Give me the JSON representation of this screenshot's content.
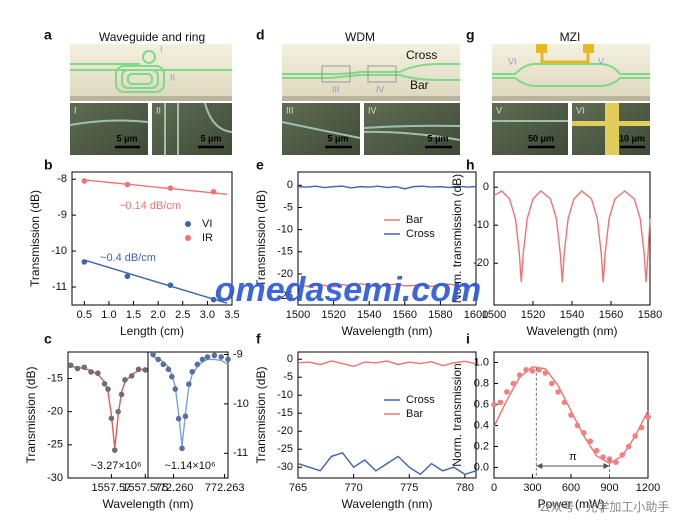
{
  "panels": {
    "letters": [
      "a",
      "b",
      "c",
      "d",
      "e",
      "f",
      "g",
      "h",
      "i"
    ]
  },
  "images": {
    "a": {
      "title": "Waveguide and ring",
      "labels": [
        "I",
        "II"
      ],
      "insets": [
        {
          "label": "I",
          "scale": "5 μm"
        },
        {
          "label": "II",
          "scale": "5 μm"
        }
      ]
    },
    "d": {
      "title": "WDM",
      "labels": [
        "Cross",
        "Bar",
        "III",
        "IV"
      ],
      "insets": [
        {
          "label": "III",
          "scale": "5 μm"
        },
        {
          "label": "IV",
          "scale": "5 μm"
        }
      ]
    },
    "g": {
      "title": "MZI",
      "labels": [
        "VI",
        "V"
      ],
      "insets": [
        {
          "label": "V",
          "scale": "50 μm"
        },
        {
          "label": "VI",
          "scale": "10 μm"
        }
      ]
    }
  },
  "watermark": {
    "site": "omedasemi.com",
    "wechat": "公众号 · 光学加工小助手"
  },
  "chart_data": [
    {
      "type": "scatter",
      "xlabel": "Length (cm)",
      "ylabel": "Transmission (dB)",
      "xlim": [
        0.25,
        3.5
      ],
      "ylim": [
        -11.5,
        -7.8
      ],
      "xticks": [
        0.5,
        {
          "value": 1,
          "label": "1.0"
        },
        1.5,
        {
          "value": 2,
          "label": "2.0"
        },
        2.5,
        {
          "value": 3,
          "label": "3.0"
        },
        3.5
      ],
      "yticks": [
        -8,
        -9,
        -10,
        -11
      ],
      "series": [
        {
          "name": "VI",
          "color": "#3f64b4",
          "style": "markers",
          "x": [
            0.5,
            1.375,
            2.25,
            3.125
          ],
          "values": [
            -10.3,
            -10.7,
            -10.95,
            -11.35
          ]
        },
        {
          "name": "IR",
          "color": "#f07272",
          "style": "markers",
          "x": [
            0.5,
            1.375,
            2.25,
            3.125
          ],
          "values": [
            -8.05,
            -8.15,
            -8.25,
            -8.35
          ]
        },
        {
          "color": "#3f64b4",
          "style": "line",
          "x": [
            0.5,
            3.4
          ],
          "values": [
            -10.25,
            -11.45
          ]
        },
        {
          "color": "#f07272",
          "style": "line",
          "x": [
            0.5,
            3.4
          ],
          "values": [
            -8.02,
            -8.42
          ]
        }
      ],
      "legend": "center right",
      "annotations": [
        {
          "text": "~0.14 dB/cm",
          "color": "#f07272"
        },
        {
          "text": "~0.4 dB/cm",
          "color": "#3f64b4"
        }
      ]
    },
    {
      "type": "line",
      "xlabel": "Wavelength (nm)",
      "ylabel": "Transmission (dB)",
      "xlim": [
        1500,
        1600
      ],
      "ylim": [
        -27,
        3
      ],
      "xticks": [
        1500,
        1520,
        1540,
        1560,
        1580,
        1600
      ],
      "yticks": [
        0,
        -5,
        -10,
        -15,
        -20,
        -25
      ],
      "x": [
        1500,
        1505,
        1510,
        1515,
        1520,
        1525,
        1530,
        1535,
        1540,
        1545,
        1550,
        1555,
        1560,
        1565,
        1570,
        1575,
        1580,
        1585,
        1590,
        1595,
        1600
      ],
      "series": [
        {
          "name": "Bar",
          "color": "#f07272",
          "style": "line",
          "values": [
            -22.5,
            -22.8,
            -22.3,
            -22.6,
            -22.9,
            -22.4,
            -22.7,
            -22.2,
            -22.6,
            -22.8,
            -22.5,
            -22.3,
            -22.7,
            -22.6,
            -22.4,
            -22.8,
            -22.5,
            -22.3,
            -22.6,
            -22.7,
            -22.4
          ]
        },
        {
          "name": "Cross",
          "color": "#3f64b4",
          "style": "line",
          "values": [
            -0.3,
            -0.4,
            -0.2,
            -0.5,
            -0.3,
            -0.2,
            -0.6,
            -0.3,
            -0.4,
            -0.2,
            -0.5,
            -0.3,
            -0.8,
            -0.3,
            -0.2,
            -0.4,
            -0.3,
            -0.5,
            -0.2,
            -0.4,
            -0.3
          ]
        }
      ],
      "legend": "center right"
    },
    {
      "type": "line",
      "xlabel": "Wavelength (nm)",
      "ylabel": "Norm. transmission (dB)",
      "xlim": [
        1500,
        1580
      ],
      "ylim": [
        -31,
        4
      ],
      "xticks": [
        1500,
        1520,
        1540,
        1560,
        1580
      ],
      "yticks": [
        0,
        -10,
        -20
      ],
      "x": [
        1500,
        1504,
        1508,
        1511,
        1513,
        1514,
        1515,
        1517,
        1520,
        1524,
        1529,
        1532,
        1534,
        1535,
        1536,
        1538,
        1541,
        1545,
        1550,
        1553,
        1555,
        1556,
        1557,
        1559,
        1562,
        1567,
        1572,
        1575,
        1577,
        1578,
        1579,
        1580
      ],
      "series": [
        {
          "color": "#f07272",
          "style": "line",
          "values": [
            -2.2,
            -1.0,
            -3.1,
            -8.3,
            -17.5,
            -25,
            -17.5,
            -8.3,
            -3.1,
            -1.0,
            -3.1,
            -8.3,
            -17.5,
            -25,
            -17.5,
            -8.3,
            -3.1,
            -1.0,
            -3.1,
            -8.3,
            -17.5,
            -25,
            -17.5,
            -8.3,
            -3.1,
            -1.0,
            -3.1,
            -8.3,
            -17.5,
            -25,
            -17.5,
            -8.3
          ]
        }
      ]
    },
    {
      "type": "scatter",
      "xlabel": "Wavelength (nm)",
      "ylabel": "Transmission (dB)",
      "xlim": [
        1557.5636,
        1557.5754
      ],
      "ylim": [
        -30,
        -11
      ],
      "xticks": [
        1557.57,
        1557.575
      ],
      "yticks": [
        -15,
        -20,
        -25,
        -30
      ],
      "x": [
        1557.564,
        1557.565,
        1557.566,
        1557.567,
        1557.568,
        1557.569,
        1557.5695,
        1557.57,
        1557.5705,
        1557.571,
        1557.5715,
        1557.572,
        1557.573,
        1557.574,
        1557.575
      ],
      "series": [
        {
          "color": "#e8585a",
          "style": "line",
          "values": [
            -13.2,
            -13.3,
            -13.5,
            -13.8,
            -14.4,
            -15.5,
            -17,
            -20.5,
            -25.5,
            -20.5,
            -17,
            -15.5,
            -14.4,
            -13.8,
            -13.5
          ]
        },
        {
          "color": "#6f6f6f",
          "style": "markers",
          "values": [
            -13.0,
            -13.5,
            -13.3,
            -14.0,
            -14.2,
            -15.8,
            -16.6,
            -21,
            -25.8,
            -20,
            -17.4,
            -15.2,
            -14.6,
            -13.6,
            -13.7
          ]
        }
      ],
      "annotations": [
        {
          "text": "~3.27×10⁶",
          "color": "#111"
        }
      ]
    },
    {
      "type": "scatter",
      "y_axis_side": "right",
      "xlim": [
        772.2585,
        772.2632
      ],
      "ylim": [
        -11.5,
        -8.95
      ],
      "xticks": [
        {
          "value": 772.26,
          "label": "772.260"
        },
        772.263
      ],
      "yticks": [
        -9,
        -10,
        -11
      ],
      "x": [
        772.2588,
        772.2591,
        772.2594,
        772.2597,
        772.2599,
        772.2601,
        772.2603,
        772.2605,
        772.2607,
        772.2609,
        772.2611,
        772.2614,
        772.2617,
        772.262,
        772.2624,
        772.2628,
        772.2632
      ],
      "series": [
        {
          "color": "#7aa2d6",
          "style": "line",
          "values": [
            -9.05,
            -9.08,
            -9.15,
            -9.25,
            -9.4,
            -9.65,
            -10.2,
            -10.85,
            -10.2,
            -9.65,
            -9.4,
            -9.25,
            -9.15,
            -9.1,
            -9.1,
            -9.12,
            -9.2
          ]
        },
        {
          "color": "#5a6f9e",
          "style": "markers",
          "values": [
            -9.0,
            -9.1,
            -9.2,
            -9.3,
            -9.45,
            -9.7,
            -10.3,
            -10.9,
            -10.25,
            -9.6,
            -9.35,
            -9.2,
            -9.1,
            -9.05,
            -9.02,
            -9.05,
            -9.1
          ]
        }
      ],
      "annotations": [
        {
          "text": "~1.14×10⁶",
          "color": "#111"
        }
      ]
    },
    {
      "type": "line",
      "xlabel": "Wavelength (nm)",
      "ylabel": "Transmission (dB)",
      "xlim": [
        765,
        781
      ],
      "ylim": [
        -33,
        2
      ],
      "xticks": [
        765,
        770,
        775,
        780
      ],
      "yticks": [
        0,
        -5,
        -10,
        -15,
        -20,
        -25,
        -30
      ],
      "x": [
        765,
        766,
        767,
        768,
        769,
        770,
        771,
        772,
        773,
        774,
        775,
        776,
        777,
        778,
        779,
        780,
        781
      ],
      "series": [
        {
          "name": "Cross",
          "color": "#3f64b4",
          "style": "line",
          "values": [
            -29,
            -30,
            -31,
            -27,
            -26,
            -30,
            -28,
            -31,
            -29,
            -27,
            -30,
            -32,
            -29,
            -31,
            -30,
            -32,
            -31
          ]
        },
        {
          "name": "Bar",
          "color": "#f07272",
          "style": "line",
          "values": [
            -1,
            -0.8,
            -1.5,
            -0.5,
            -1.2,
            -2,
            -0.8,
            -1,
            -0.5,
            -1.5,
            -0.8,
            -1.2,
            -0.7,
            -1.8,
            -1,
            -0.6,
            -1.3
          ]
        }
      ],
      "legend": "lower right"
    },
    {
      "type": "scatter",
      "xlabel": "Power (mW)",
      "ylabel": "Norm. transmission",
      "xlim": [
        0,
        1200
      ],
      "ylim": [
        -0.1,
        1.1
      ],
      "xticks": [
        0,
        300,
        600,
        900,
        1200
      ],
      "yticks": [
        {
          "value": 0,
          "label": "0.0"
        },
        0.2,
        0.4,
        0.6,
        0.8,
        {
          "value": 1,
          "label": "1.0"
        }
      ],
      "series": [
        {
          "color": "#f07272",
          "style": "line",
          "x": [
            0,
            100,
            200,
            300,
            400,
            500,
            600,
            700,
            800,
            900,
            1000,
            1100,
            1200
          ],
          "values": [
            0.39,
            0.64,
            0.86,
            0.96,
            0.94,
            0.78,
            0.54,
            0.3,
            0.11,
            0.04,
            0.11,
            0.3,
            0.54
          ]
        },
        {
          "color": "#f28080",
          "style": "markers",
          "x": [
            0,
            50,
            100,
            150,
            200,
            250,
            300,
            350,
            400,
            450,
            500,
            550,
            600,
            650,
            700,
            750,
            800,
            850,
            900,
            950,
            1000,
            1050,
            1100,
            1150,
            1200
          ],
          "values": [
            0.6,
            0.62,
            0.72,
            0.8,
            0.88,
            0.93,
            0.92,
            0.93,
            0.9,
            0.8,
            0.72,
            0.62,
            0.5,
            0.4,
            0.33,
            0.25,
            0.16,
            0.1,
            0.08,
            0.05,
            0.12,
            0.2,
            0.3,
            0.38,
            0.48
          ]
        }
      ],
      "guides": [
        {
          "x": 330,
          "y": 0.95
        },
        {
          "x": 900,
          "y": 0.08
        }
      ],
      "annotations": [
        {
          "text": "π",
          "color": "#111"
        }
      ]
    }
  ]
}
